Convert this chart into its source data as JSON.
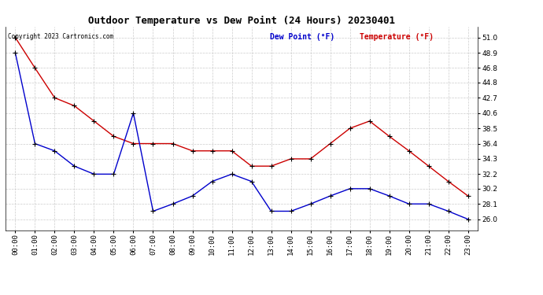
{
  "title": "Outdoor Temperature vs Dew Point (24 Hours) 20230401",
  "copyright": "Copyright 2023 Cartronics.com",
  "legend_dew": "Dew Point (°F)",
  "legend_temp": "Temperature (°F)",
  "hours": [
    "00:00",
    "01:00",
    "02:00",
    "03:00",
    "04:00",
    "05:00",
    "06:00",
    "07:00",
    "08:00",
    "09:00",
    "10:00",
    "11:00",
    "12:00",
    "13:00",
    "14:00",
    "15:00",
    "16:00",
    "17:00",
    "18:00",
    "19:00",
    "20:00",
    "21:00",
    "22:00",
    "23:00"
  ],
  "temperature": [
    51.0,
    46.8,
    42.7,
    41.6,
    39.5,
    37.4,
    36.4,
    36.4,
    36.4,
    35.4,
    35.4,
    35.4,
    33.3,
    33.3,
    34.3,
    34.3,
    36.4,
    38.5,
    39.5,
    37.4,
    35.4,
    33.3,
    31.2,
    29.2
  ],
  "dew_point": [
    48.9,
    36.4,
    35.4,
    33.3,
    32.2,
    32.2,
    40.6,
    27.1,
    28.1,
    29.2,
    31.2,
    32.2,
    31.2,
    27.1,
    27.1,
    28.1,
    29.2,
    30.2,
    30.2,
    29.2,
    28.1,
    28.1,
    27.1,
    26.0
  ],
  "temp_color": "#cc0000",
  "dew_color": "#0000cc",
  "marker_color": "black",
  "ylim_min": 24.5,
  "ylim_max": 52.5,
  "yticks": [
    26.0,
    28.1,
    30.2,
    32.2,
    34.3,
    36.4,
    38.5,
    40.6,
    42.7,
    44.8,
    46.8,
    48.9,
    51.0
  ],
  "bg_color": "#ffffff",
  "grid_color": "#cccccc",
  "title_fontsize": 9,
  "label_fontsize": 6.5,
  "legend_fontsize": 7,
  "copyright_fontsize": 5.5
}
